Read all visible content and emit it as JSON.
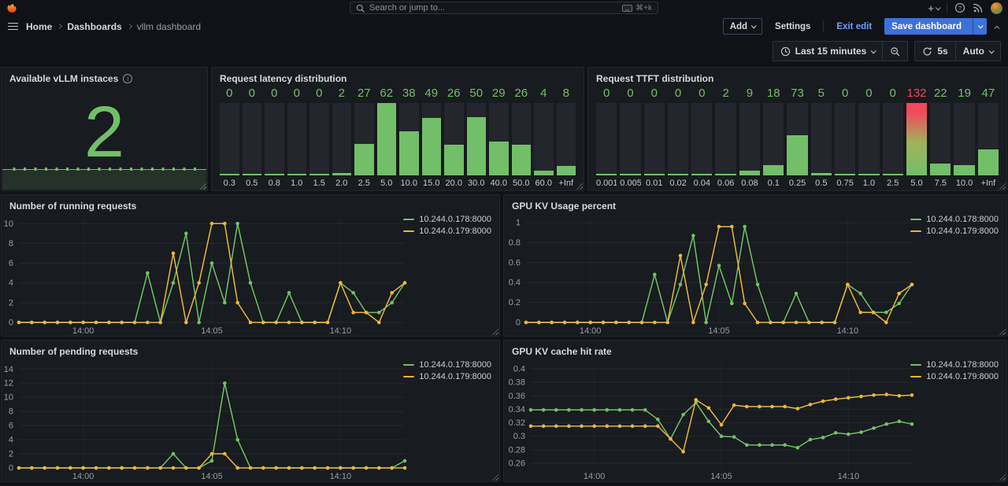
{
  "nav": {
    "search_placeholder": "Search or jump to...",
    "shortcut": "⌘+k"
  },
  "breadcrumb": {
    "items": [
      {
        "label": "Home"
      },
      {
        "label": "Dashboards"
      },
      {
        "label": "vllm dashboard"
      }
    ]
  },
  "actions": {
    "add": "Add",
    "settings": "Settings",
    "exit_edit": "Exit edit",
    "save_dashboard": "Save dashboard"
  },
  "timebar": {
    "range": "Last 15 minutes",
    "interval": "5s",
    "auto": "Auto"
  },
  "colors": {
    "green": "#73bf69",
    "yellow": "#eab839",
    "red": "#f2495c",
    "blue": "#3d71d9",
    "link": "#6e9fff"
  },
  "chart_data": [
    {
      "type": "stat",
      "title": "Available vLLM instaces",
      "value": "2"
    },
    {
      "type": "bar",
      "title": "Request latency distribution",
      "categories": [
        "0.3",
        "0.5",
        "0.8",
        "1.0",
        "1.5",
        "2.0",
        "2.5",
        "5.0",
        "10.0",
        "15.0",
        "20.0",
        "30.0",
        "40.0",
        "50.0",
        "60.0",
        "+Inf"
      ],
      "values": [
        0,
        0,
        0,
        0,
        0,
        2,
        27,
        62,
        38,
        49,
        26,
        50,
        29,
        26,
        4,
        8
      ],
      "gradient_index": -1
    },
    {
      "type": "bar",
      "title": "Request TTFT distribution",
      "categories": [
        "0.001",
        "0.005",
        "0.01",
        "0.02",
        "0.04",
        "0.06",
        "0.08",
        "0.1",
        "0.25",
        "0.5",
        "0.75",
        "1.0",
        "2.5",
        "5.0",
        "7.5",
        "10.0",
        "+Inf"
      ],
      "values": [
        0,
        0,
        0,
        0,
        0,
        2,
        9,
        18,
        73,
        5,
        0,
        0,
        0,
        132,
        22,
        19,
        47
      ],
      "gradient_index": 13
    },
    {
      "type": "line",
      "title": "Number of running requests",
      "ymin": 0,
      "ymax": 10.5,
      "ytick_values": [
        0,
        2,
        4,
        6,
        8,
        10
      ],
      "ytick_labels": [
        "0",
        "2",
        "4",
        "6",
        "8",
        "10"
      ],
      "xtick_labels": [
        "14:00",
        "14:05",
        "14:10"
      ],
      "xtick_indices": [
        5,
        15,
        25
      ],
      "series": [
        {
          "name": "10.244.0.178:8000",
          "color": "#73bf69",
          "values": [
            0,
            0,
            0,
            0,
            0,
            0,
            0,
            0,
            0,
            0,
            5,
            0,
            4,
            9,
            0,
            6,
            2,
            10,
            4,
            0,
            0,
            3,
            0,
            0,
            0,
            4,
            3,
            1,
            1,
            2,
            4
          ]
        },
        {
          "name": "10.244.0.179:8000",
          "color": "#eab839",
          "values": [
            0,
            0,
            0,
            0,
            0,
            0,
            0,
            0,
            0,
            0,
            0,
            0,
            7,
            0,
            4,
            10,
            10,
            2,
            0,
            0,
            0,
            0,
            0,
            0,
            0,
            4,
            1,
            1,
            0,
            3,
            4
          ]
        }
      ]
    },
    {
      "type": "line",
      "title": "GPU KV Usage percent",
      "ymin": 0,
      "ymax": 1.04,
      "ytick_values": [
        0,
        0.2,
        0.4,
        0.6,
        0.8,
        1
      ],
      "ytick_labels": [
        "0",
        "0.2",
        "0.4",
        "0.6",
        "0.8",
        "1"
      ],
      "xtick_labels": [
        "14:00",
        "14:05",
        "14:10"
      ],
      "xtick_indices": [
        5,
        15,
        25
      ],
      "series": [
        {
          "name": "10.244.0.178:8000",
          "color": "#73bf69",
          "values": [
            0,
            0,
            0,
            0,
            0,
            0,
            0,
            0,
            0,
            0,
            0.48,
            0,
            0.38,
            0.87,
            0,
            0.57,
            0.19,
            0.96,
            0.38,
            0,
            0,
            0.29,
            0,
            0,
            0,
            0.38,
            0.29,
            0.1,
            0.1,
            0.19,
            0.38
          ]
        },
        {
          "name": "10.244.0.179:8000",
          "color": "#eab839",
          "values": [
            0,
            0,
            0,
            0,
            0,
            0,
            0,
            0,
            0,
            0,
            0,
            0,
            0.67,
            0,
            0.38,
            0.96,
            0.96,
            0.19,
            0,
            0,
            0,
            0,
            0,
            0,
            0,
            0.38,
            0.1,
            0.1,
            0,
            0.29,
            0.38
          ]
        }
      ]
    },
    {
      "type": "line",
      "title": "Number of pending requests",
      "ymin": 0,
      "ymax": 14.7,
      "ytick_values": [
        0,
        2,
        4,
        6,
        8,
        10,
        12,
        14
      ],
      "ytick_labels": [
        "0",
        "2",
        "4",
        "6",
        "8",
        "10",
        "12",
        "14"
      ],
      "xtick_labels": [
        "14:00",
        "14:05",
        "14:10"
      ],
      "xtick_indices": [
        5,
        15,
        25
      ],
      "series": [
        {
          "name": "10.244.0.178:8000",
          "color": "#73bf69",
          "values": [
            0,
            0,
            0,
            0,
            0,
            0,
            0,
            0,
            0,
            0,
            0,
            0,
            2,
            0,
            0,
            1,
            12,
            4,
            0,
            0,
            0,
            0,
            0,
            0,
            0,
            0,
            0,
            0,
            0,
            0,
            1
          ]
        },
        {
          "name": "10.244.0.179:8000",
          "color": "#eab839",
          "values": [
            0,
            0,
            0,
            0,
            0,
            0,
            0,
            0,
            0,
            0,
            0,
            0,
            0,
            0,
            0,
            2,
            2,
            0,
            0,
            0,
            0,
            0,
            0,
            0,
            0,
            0,
            0,
            0,
            0,
            0,
            0
          ]
        }
      ]
    },
    {
      "type": "line",
      "title": "GPU KV cache hit rate",
      "ymin": 0.253,
      "ymax": 0.407,
      "ytick_values": [
        0.26,
        0.28,
        0.3,
        0.32,
        0.34,
        0.36,
        0.38,
        0.4
      ],
      "ytick_labels": [
        "0.26",
        "0.28",
        "0.3",
        "0.32",
        "0.34",
        "0.36",
        "0.38",
        "0.4"
      ],
      "xtick_labels": [
        "14:00",
        "14:05",
        "14:10"
      ],
      "xtick_indices": [
        5,
        15,
        25
      ],
      "series": [
        {
          "name": "10.244.0.178:8000",
          "color": "#73bf69",
          "values": [
            0.339,
            0.339,
            0.339,
            0.339,
            0.339,
            0.339,
            0.339,
            0.339,
            0.339,
            0.339,
            0.325,
            0.296,
            0.332,
            0.35,
            0.322,
            0.3,
            0.299,
            0.287,
            0.287,
            0.287,
            0.287,
            0.283,
            0.295,
            0.298,
            0.305,
            0.303,
            0.306,
            0.312,
            0.318,
            0.322,
            0.318
          ]
        },
        {
          "name": "10.244.0.179:8000",
          "color": "#eab839",
          "values": [
            0.315,
            0.315,
            0.315,
            0.315,
            0.315,
            0.315,
            0.315,
            0.315,
            0.315,
            0.315,
            0.315,
            0.296,
            0.277,
            0.354,
            0.342,
            0.317,
            0.346,
            0.344,
            0.344,
            0.344,
            0.344,
            0.341,
            0.347,
            0.352,
            0.355,
            0.357,
            0.359,
            0.361,
            0.362,
            0.36,
            0.361
          ]
        }
      ]
    }
  ]
}
